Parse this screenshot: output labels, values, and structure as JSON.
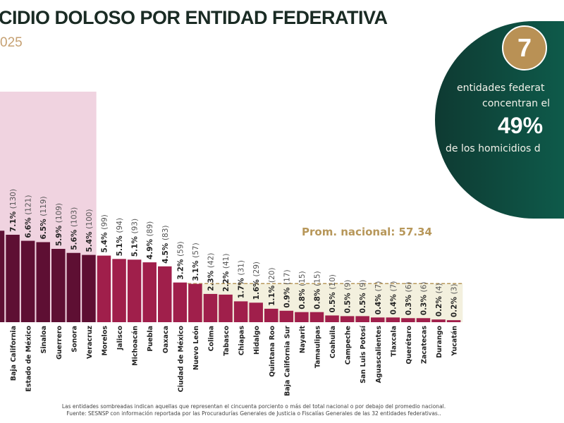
{
  "header": {
    "title": "CIDIO DOLOSO POR ENTIDAD FEDERATIVA",
    "subtitle": "025"
  },
  "callout": {
    "number": "7",
    "line1": "entidades federat",
    "line2": "concentran el",
    "percent": "49%",
    "line3": "de los homicidios d"
  },
  "footnotes": [
    "Las entidades sombreadas indican aquellas que representan el cincuenta porciento o más del total nacional o por debajo del promedio nacional.",
    "Fuente: SESNSP con información reportada por las Procuradurías Generales de Justicia o Fiscalías Generales de las 32 entidades federativas.."
  ],
  "colors": {
    "top_bars": "#5e0f33",
    "other_bars": "#a01f4b",
    "top_shade": "#f0d3e0",
    "below_avg_shade": "#f3f0de",
    "avg_line": "#b7975a",
    "badge_gold": "#b99155",
    "badge_green": "#0e4a3e"
  },
  "chart_data": {
    "type": "bar",
    "average": {
      "label": "Prom. nacional: 57.34",
      "value": 57.34
    },
    "categories": [
      "",
      "Baja California",
      "Estado de México",
      "Sinaloa",
      "Guerrero",
      "Sonora",
      "Veracruz",
      "Morelos",
      "Jalisco",
      "Michoacán",
      "Puebla",
      "Oaxaca",
      "Ciudad de México",
      "Nuevo León",
      "Colima",
      "Tabasco",
      "Chiapas",
      "Hidalgo",
      "Quintana Roo",
      "Baja California Sur",
      "Nayarit",
      "Tamaulipas",
      "Coahuila",
      "Campeche",
      "San Luis Potosí",
      "Aguascalientes",
      "Tlaxcala",
      "Querétaro",
      "Zacatecas",
      "Durango",
      "Yucatán"
    ],
    "values": [
      136,
      130,
      121,
      119,
      109,
      103,
      100,
      99,
      94,
      93,
      89,
      83,
      59,
      57,
      42,
      41,
      31,
      29,
      20,
      17,
      15,
      15,
      10,
      9,
      9,
      7,
      7,
      6,
      6,
      4,
      3
    ],
    "percent_labels": [
      "",
      "7.1%",
      "6.6%",
      "6.5%",
      "5.9%",
      "5.6%",
      "5.4%",
      "5.4%",
      "5.1%",
      "5.1%",
      "4.9%",
      "4.5%",
      "3.2%",
      "3.1%",
      "2.3%",
      "2.2%",
      "1.7%",
      "1.6%",
      "1.1%",
      "0.9%",
      "0.8%",
      "0.8%",
      "0.5%",
      "0.5%",
      "0.5%",
      "0.4%",
      "0.4%",
      "0.3%",
      "0.3%",
      "0.2%",
      "0.2%"
    ],
    "count_labels": [
      "",
      "(130)",
      "(121)",
      "(119)",
      "(109)",
      "(103)",
      "(100)",
      "(99)",
      "(94)",
      "(93)",
      "(89)",
      "(83)",
      "(59)",
      "(57)",
      "(42)",
      "(41)",
      "(31)",
      "(29)",
      "(20)",
      "(17)",
      "(15)",
      "(15)",
      "(10)",
      "(9)",
      "(9)",
      "(7)",
      "(7)",
      "(6)",
      "(6)",
      "(4)",
      "(3)"
    ],
    "highlighted_top_count": 7,
    "ylim": [
      0,
      140
    ]
  }
}
